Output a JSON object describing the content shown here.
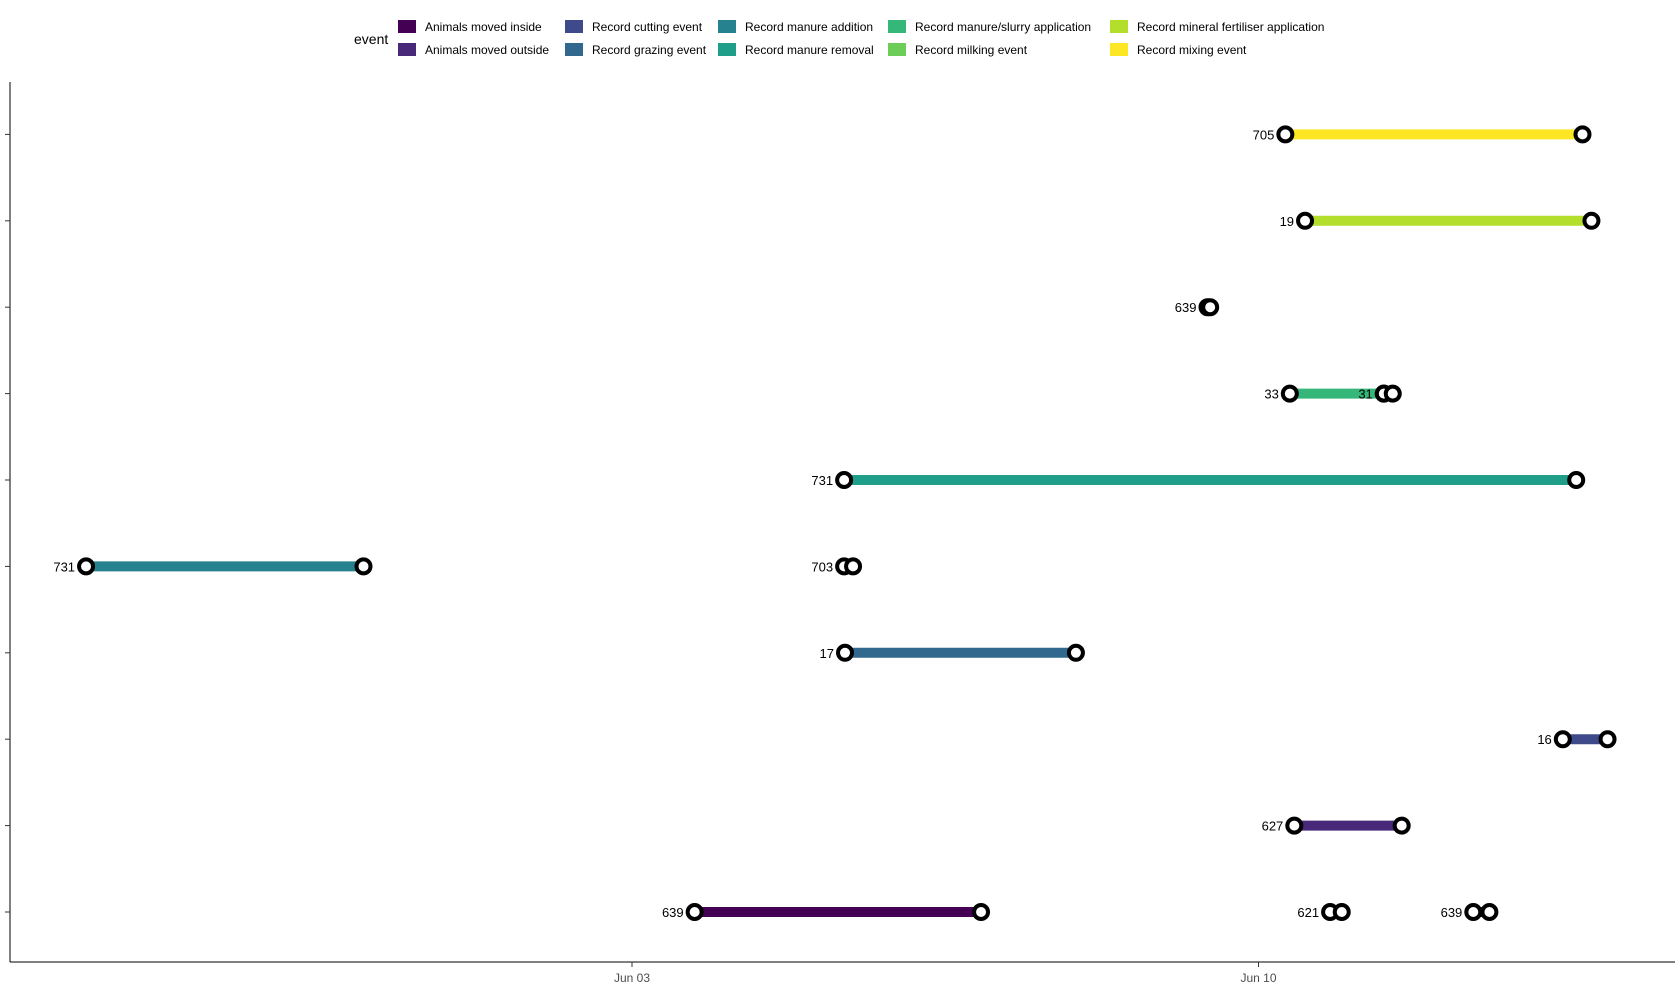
{
  "chart_data": {
    "type": "timeline",
    "legend": {
      "title": "event",
      "placement": "top",
      "entries": [
        {
          "name": "Animals moved inside",
          "color": "#440154"
        },
        {
          "name": "Animals moved outside",
          "color": "#482878"
        },
        {
          "name": "Record cutting event",
          "color": "#3E4A89"
        },
        {
          "name": "Record grazing event",
          "color": "#31688E"
        },
        {
          "name": "Record manure addition",
          "color": "#26828E"
        },
        {
          "name": "Record manure removal",
          "color": "#1F9E89"
        },
        {
          "name": "Record manure/slurry application",
          "color": "#35B779"
        },
        {
          "name": "Record milking event",
          "color": "#6DCD59"
        },
        {
          "name": "Record mineral fertiliser application",
          "color": "#B4DE2C"
        },
        {
          "name": "Record mixing event",
          "color": "#FDE725"
        }
      ]
    },
    "x_axis": {
      "unit": "days since Jun 03",
      "range": [
        -9.5,
        17.4
      ],
      "ticks": [
        {
          "value": 0,
          "label": "Jun 03"
        },
        {
          "value": 7,
          "label": "Jun 10"
        }
      ]
    },
    "y_axis": {
      "rows": 10,
      "labels": []
    },
    "grid": false,
    "segments": [
      {
        "row": 0,
        "event": "Animals moved inside",
        "label": "639",
        "start": 0.7,
        "end": 3.9
      },
      {
        "row": 0,
        "event": "Animals moved inside",
        "label": "621",
        "start": 7.8,
        "end": 7.93
      },
      {
        "row": 0,
        "event": "Animals moved inside",
        "label": "639",
        "start": 9.4,
        "end": 9.58
      },
      {
        "row": 1,
        "event": "Animals moved outside",
        "label": "627",
        "start": 7.4,
        "end": 8.6
      },
      {
        "row": 2,
        "event": "Record cutting event",
        "label": "16",
        "start": 10.4,
        "end": 10.9
      },
      {
        "row": 3,
        "event": "Record grazing event",
        "label": "17",
        "start": 2.38,
        "end": 4.96
      },
      {
        "row": 4,
        "event": "Record manure addition",
        "label": "731",
        "start": -6.1,
        "end": -3.0
      },
      {
        "row": 4,
        "event": "Record manure addition",
        "label": "703",
        "start": 2.37,
        "end": 2.47
      },
      {
        "row": 5,
        "event": "Record manure removal",
        "label": "731",
        "start": 2.37,
        "end": 10.55
      },
      {
        "row": 6,
        "event": "Record manure/slurry application",
        "label": "33",
        "start": 7.35,
        "end": 8.4
      },
      {
        "row": 6,
        "event": "Record manure/slurry application",
        "label": "31",
        "start": 8.4,
        "end": 8.5
      },
      {
        "row": 7,
        "event": "Record milking event",
        "label": "639",
        "start": 6.43,
        "end": 6.46
      },
      {
        "row": 8,
        "event": "Record mineral fertiliser application",
        "label": "19",
        "start": 7.52,
        "end": 10.72
      },
      {
        "row": 9,
        "event": "Record mixing event",
        "label": "705",
        "start": 7.3,
        "end": 10.62
      }
    ]
  }
}
